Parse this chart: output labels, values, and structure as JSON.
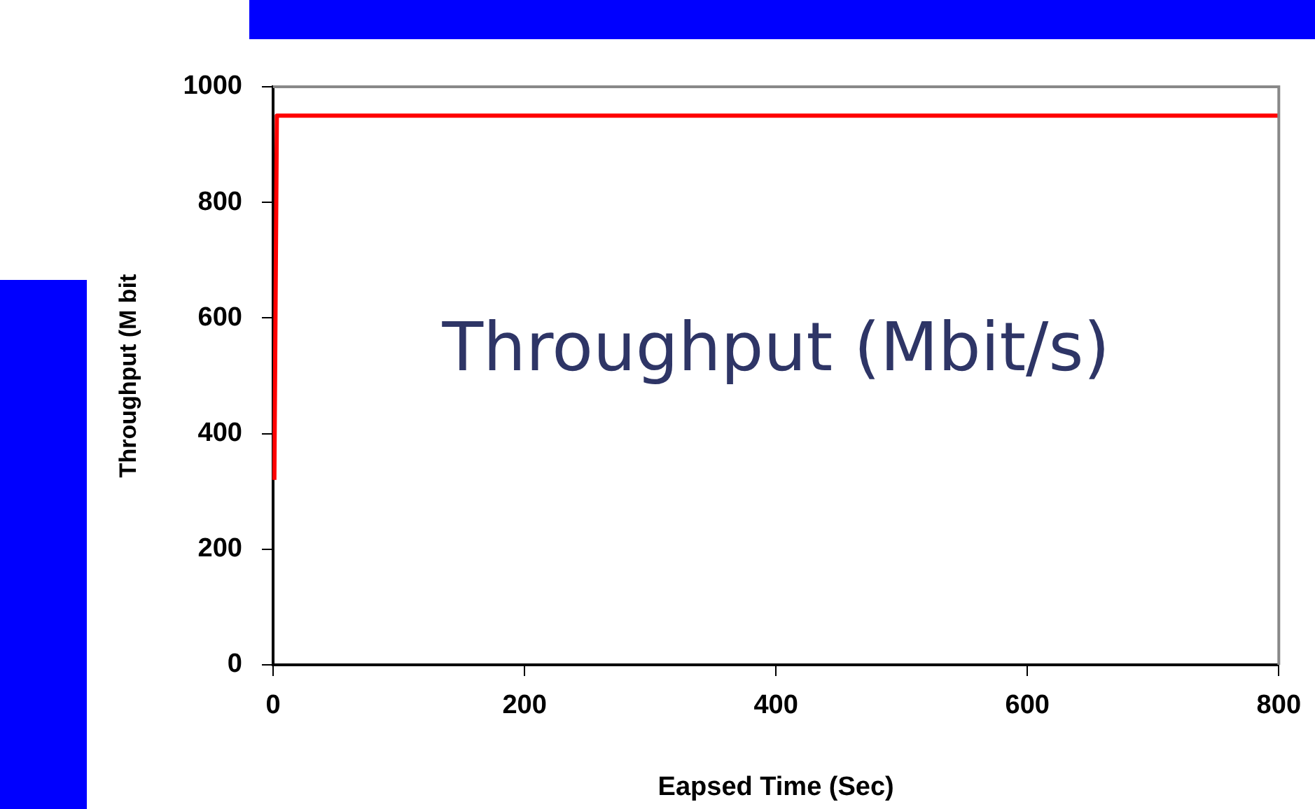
{
  "chart_data": {
    "type": "line",
    "xlabel": "Eapsed Time (Sec)",
    "ylabel": "Throughput (M bit",
    "annotations": [
      "Throughput (Mbit/s)"
    ],
    "x": [
      1,
      3,
      800
    ],
    "series": [
      {
        "color": "#ff0000",
        "values": [
          320,
          950,
          950
        ]
      }
    ],
    "xlim": [
      0,
      800
    ],
    "xticks": [
      0,
      200,
      400,
      600,
      800
    ],
    "ylim": [
      0,
      1000
    ],
    "yticks": [
      0,
      200,
      400,
      600,
      800,
      1000
    ],
    "grid": false,
    "legend": false,
    "marker": "none",
    "line_style": "solid"
  }
}
